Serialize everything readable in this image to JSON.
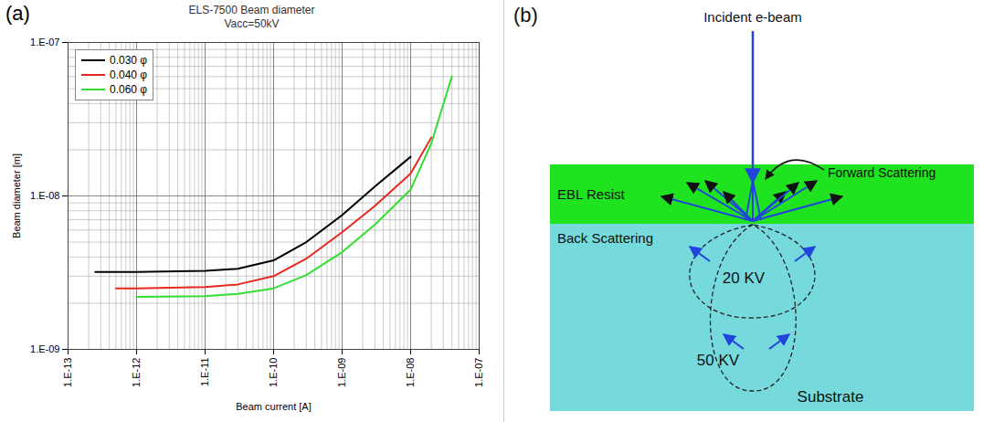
{
  "chart_data": {
    "type": "line",
    "panel_label": "(a)",
    "title": "ELS-7500 Beam diameter",
    "subtitle": "Vacc=50kV",
    "x_label": "Beam current [A]",
    "y_label": "Beam diameter [m]",
    "log": true,
    "grid": true,
    "legend": "top-left",
    "xlim": [
      1e-13,
      1e-07
    ],
    "xticks": [
      {
        "value": 1e-13,
        "label": "1.E-13"
      },
      {
        "value": 1e-12,
        "label": "1.E-12"
      },
      {
        "value": 1e-11,
        "label": "1.E-11"
      },
      {
        "value": 1e-10,
        "label": "1.E-10"
      },
      {
        "value": 1e-09,
        "label": "1.E-09"
      },
      {
        "value": 1e-08,
        "label": "1.E-08"
      },
      {
        "value": 1e-07,
        "label": "1.E-07"
      }
    ],
    "ylim": [
      1e-09,
      1e-07
    ],
    "yticks": [
      {
        "value": 1e-09,
        "label": "1.E-09"
      },
      {
        "value": 1e-08,
        "label": "1.E-08"
      },
      {
        "value": 1e-07,
        "label": "1.E-07"
      }
    ],
    "series": [
      {
        "name": "0.030 φ",
        "color": "#000000",
        "x": [
          2.5e-13,
          1e-12,
          1e-11,
          3e-11,
          1e-10,
          3e-10,
          1e-09,
          3e-09,
          1e-08
        ],
        "values": [
          3.2e-09,
          3.2e-09,
          3.25e-09,
          3.35e-09,
          3.8e-09,
          5e-09,
          7.5e-09,
          1.15e-08,
          1.8e-08
        ]
      },
      {
        "name": "0.040 φ",
        "color": "#e8281e",
        "x": [
          5e-13,
          1e-12,
          1e-11,
          3e-11,
          1e-10,
          3e-10,
          1e-09,
          3e-09,
          1e-08,
          2e-08
        ],
        "values": [
          2.5e-09,
          2.5e-09,
          2.55e-09,
          2.65e-09,
          3e-09,
          3.9e-09,
          5.8e-09,
          8.6e-09,
          1.4e-08,
          2.4e-08
        ]
      },
      {
        "name": "0.060 φ",
        "color": "#33dd33",
        "x": [
          1e-12,
          1e-11,
          3e-11,
          1e-10,
          3e-10,
          1e-09,
          3e-09,
          1e-08,
          2e-08,
          4e-08
        ],
        "values": [
          2.2e-09,
          2.22e-09,
          2.3e-09,
          2.5e-09,
          3.05e-09,
          4.3e-09,
          6.5e-09,
          1.1e-08,
          2.2e-08,
          6e-08
        ]
      }
    ]
  },
  "diagram": {
    "panel_label": "(b)",
    "labels": {
      "incident": "Incident e-beam",
      "forward": "Forward Scattering",
      "resist": "EBL Resist",
      "back": "Back Scattering",
      "kv20": "20 KV",
      "kv50": "50 KV",
      "substrate": "Substrate"
    }
  }
}
